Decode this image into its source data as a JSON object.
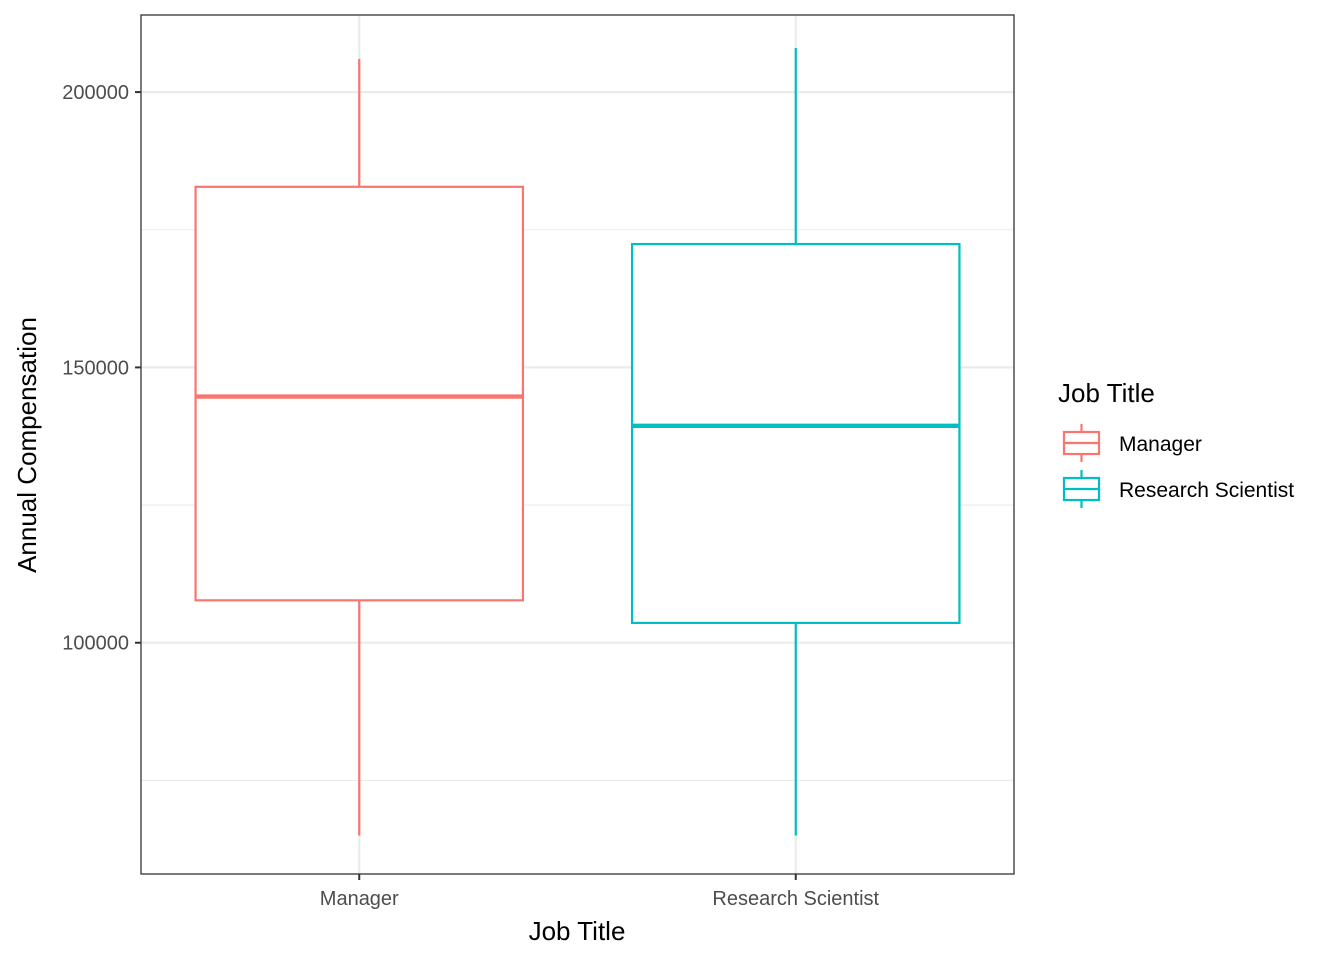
{
  "chart_data": {
    "type": "boxplot",
    "xlabel": "Job Title",
    "ylabel": "Annual Compensation",
    "ylim": [
      58000,
      214000
    ],
    "y_ticks": [
      100000,
      150000,
      200000
    ],
    "y_minor_ticks": [
      75000,
      125000,
      175000
    ],
    "grid": true,
    "legend_title": "Job Title",
    "legend_position": "right",
    "categories": [
      "Manager",
      "Research Scientist"
    ],
    "series": [
      {
        "name": "Manager",
        "color": "#F8766D",
        "whisker_low": 65000,
        "q1": 107700,
        "median": 144700,
        "q3": 182800,
        "whisker_high": 206000
      },
      {
        "name": "Research Scientist",
        "color": "#00BFC4",
        "whisker_low": 65000,
        "q1": 103600,
        "median": 139400,
        "q3": 172400,
        "whisker_high": 208000
      }
    ]
  }
}
